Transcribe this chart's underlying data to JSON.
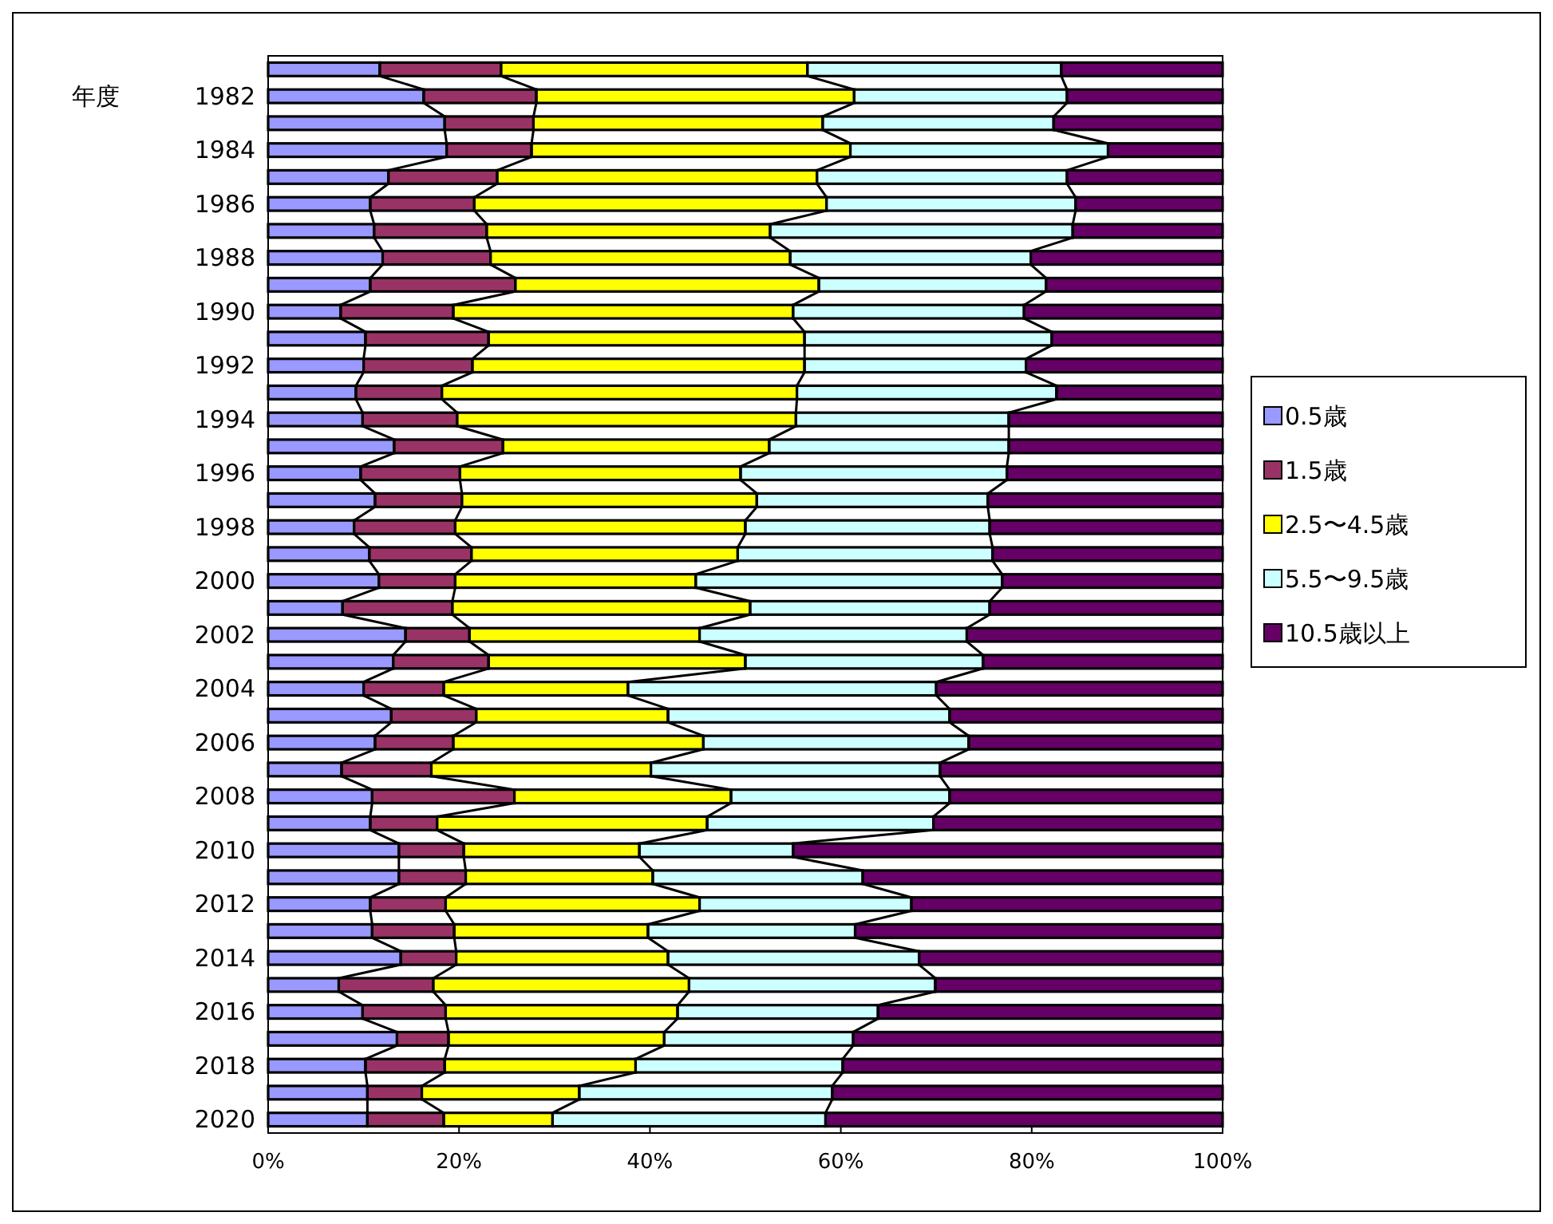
{
  "chart_data": {
    "type": "bar",
    "orientation": "horizontal",
    "stacked": true,
    "ylabel": "年度",
    "legend": "right",
    "grid": false,
    "categories": [
      null,
      "1982",
      null,
      "1984",
      null,
      "1986",
      null,
      "1988",
      null,
      "1990",
      null,
      "1992",
      null,
      "1994",
      null,
      "1996",
      null,
      "1998",
      null,
      "2000",
      null,
      "2002",
      null,
      "2004",
      null,
      "2006",
      null,
      "2008",
      null,
      "2010",
      null,
      "2012",
      null,
      "2014",
      null,
      "2016",
      null,
      "2018",
      null,
      "2020"
    ],
    "xlim": [
      0,
      100
    ],
    "xticks": [
      {
        "value": 0,
        "label": "0%"
      },
      {
        "value": 20,
        "label": "20%"
      },
      {
        "value": 40,
        "label": "40%"
      },
      {
        "value": 60,
        "label": "60%"
      },
      {
        "value": 80,
        "label": "80%"
      },
      {
        "value": 100,
        "label": "100%"
      }
    ],
    "series": [
      {
        "name": "0.5歳",
        "color": "#9999ff",
        "values": [
          11.7,
          16.3,
          18.5,
          18.7,
          12.6,
          10.7,
          11.1,
          12.0,
          10.7,
          7.6,
          10.2,
          10.0,
          9.2,
          9.9,
          13.2,
          9.7,
          11.2,
          9.0,
          10.6,
          11.6,
          7.8,
          14.4,
          13.1,
          10.0,
          12.9,
          11.2,
          7.7,
          10.9,
          10.7,
          13.7,
          13.7,
          10.7,
          10.9,
          13.9,
          7.4,
          9.9,
          13.5,
          10.2,
          10.4,
          10.4
        ]
      },
      {
        "name": "1.5歳",
        "color": "#993366",
        "values": [
          12.7,
          11.8,
          9.3,
          8.9,
          11.4,
          10.9,
          11.8,
          11.3,
          15.2,
          11.8,
          12.9,
          11.4,
          9.0,
          9.9,
          11.4,
          10.4,
          9.1,
          10.6,
          10.7,
          8.0,
          11.5,
          6.7,
          10.0,
          8.4,
          8.9,
          8.2,
          9.4,
          14.9,
          7.0,
          6.8,
          7.0,
          7.9,
          8.6,
          5.8,
          9.9,
          8.7,
          5.4,
          8.3,
          5.7,
          8.0
        ]
      },
      {
        "name": "2.5〜4.5歳",
        "color": "#ffff00",
        "values": [
          32.1,
          33.3,
          30.3,
          33.4,
          33.5,
          36.9,
          29.7,
          31.4,
          31.8,
          35.6,
          33.1,
          34.8,
          37.2,
          35.5,
          27.9,
          29.4,
          30.9,
          30.4,
          27.9,
          25.2,
          31.2,
          24.1,
          26.9,
          19.3,
          20.1,
          26.2,
          23.0,
          22.7,
          28.3,
          18.4,
          19.6,
          26.6,
          20.3,
          22.2,
          26.8,
          24.3,
          22.6,
          20.0,
          16.5,
          11.4
        ]
      },
      {
        "name": "5.5〜9.5歳",
        "color": "#ccffff",
        "values": [
          26.6,
          22.3,
          24.2,
          27.0,
          26.2,
          26.1,
          31.7,
          25.2,
          23.8,
          24.2,
          25.9,
          23.2,
          27.2,
          22.3,
          25.1,
          27.9,
          24.2,
          25.6,
          26.7,
          32.1,
          25.1,
          28.0,
          24.9,
          32.3,
          29.5,
          27.8,
          30.3,
          22.9,
          23.7,
          16.1,
          22.0,
          22.2,
          21.7,
          26.3,
          25.8,
          21.0,
          19.8,
          21.7,
          26.5,
          28.6
        ]
      },
      {
        "name": "10.5歳以上",
        "color": "#660066",
        "values": [
          16.9,
          16.3,
          17.7,
          12.0,
          16.3,
          15.4,
          15.7,
          20.1,
          18.5,
          20.8,
          17.9,
          20.6,
          17.4,
          22.4,
          22.4,
          22.6,
          24.6,
          24.4,
          24.1,
          23.1,
          24.4,
          26.8,
          25.1,
          30.0,
          28.6,
          26.6,
          29.6,
          28.6,
          30.3,
          45.0,
          37.7,
          32.6,
          38.5,
          31.8,
          30.1,
          36.1,
          38.7,
          39.8,
          40.9,
          41.6
        ]
      }
    ]
  }
}
